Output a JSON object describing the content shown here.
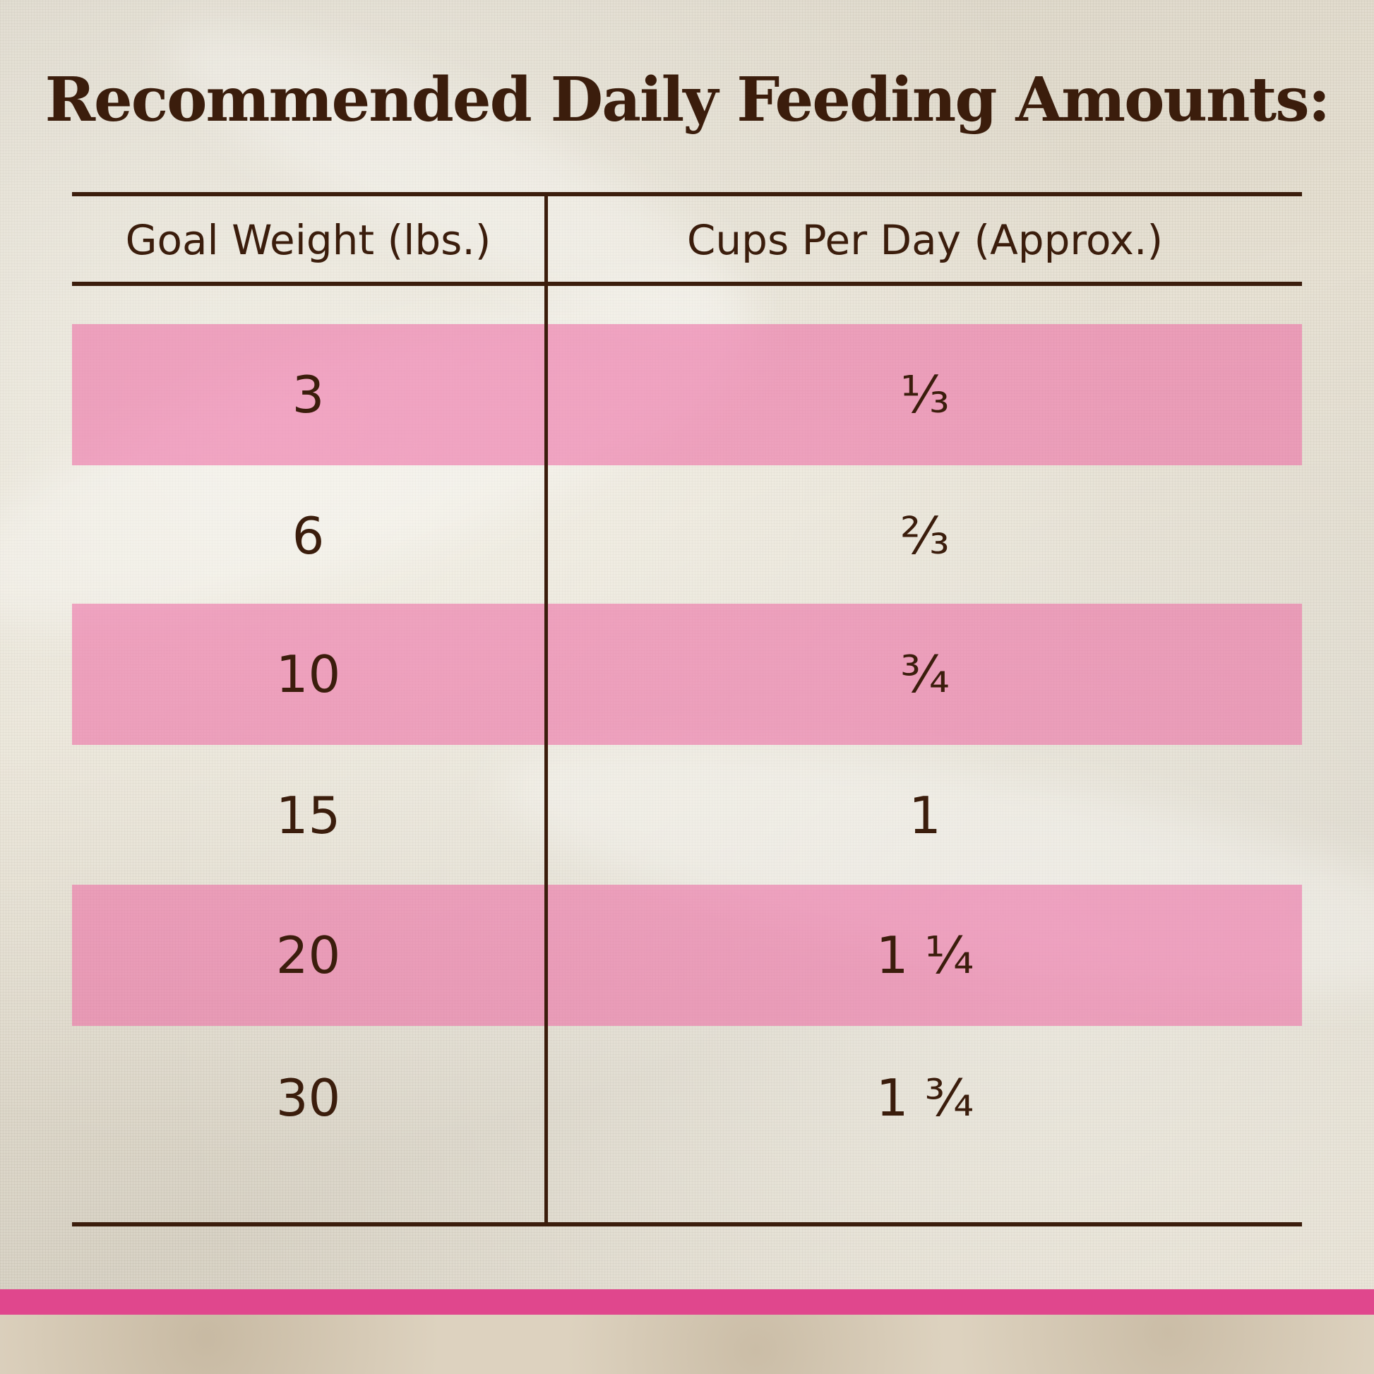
{
  "title": "Recommended Daily Feeding Amounts:",
  "table": {
    "headers": [
      "Goal Weight (lbs.)",
      "Cups Per Day (Approx.)"
    ],
    "rows": [
      {
        "weight": "3",
        "cups": "⅓"
      },
      {
        "weight": "6",
        "cups": "⅔"
      },
      {
        "weight": "10",
        "cups": "¾"
      },
      {
        "weight": "15",
        "cups": "1"
      },
      {
        "weight": "20",
        "cups": "1 ¼"
      },
      {
        "weight": "30",
        "cups": "1 ¾"
      }
    ]
  },
  "colors": {
    "text": "#3b1d0c",
    "band": "#ec64a0",
    "footer_bar": "#e0478d",
    "fabric": "#e6e0d2"
  }
}
